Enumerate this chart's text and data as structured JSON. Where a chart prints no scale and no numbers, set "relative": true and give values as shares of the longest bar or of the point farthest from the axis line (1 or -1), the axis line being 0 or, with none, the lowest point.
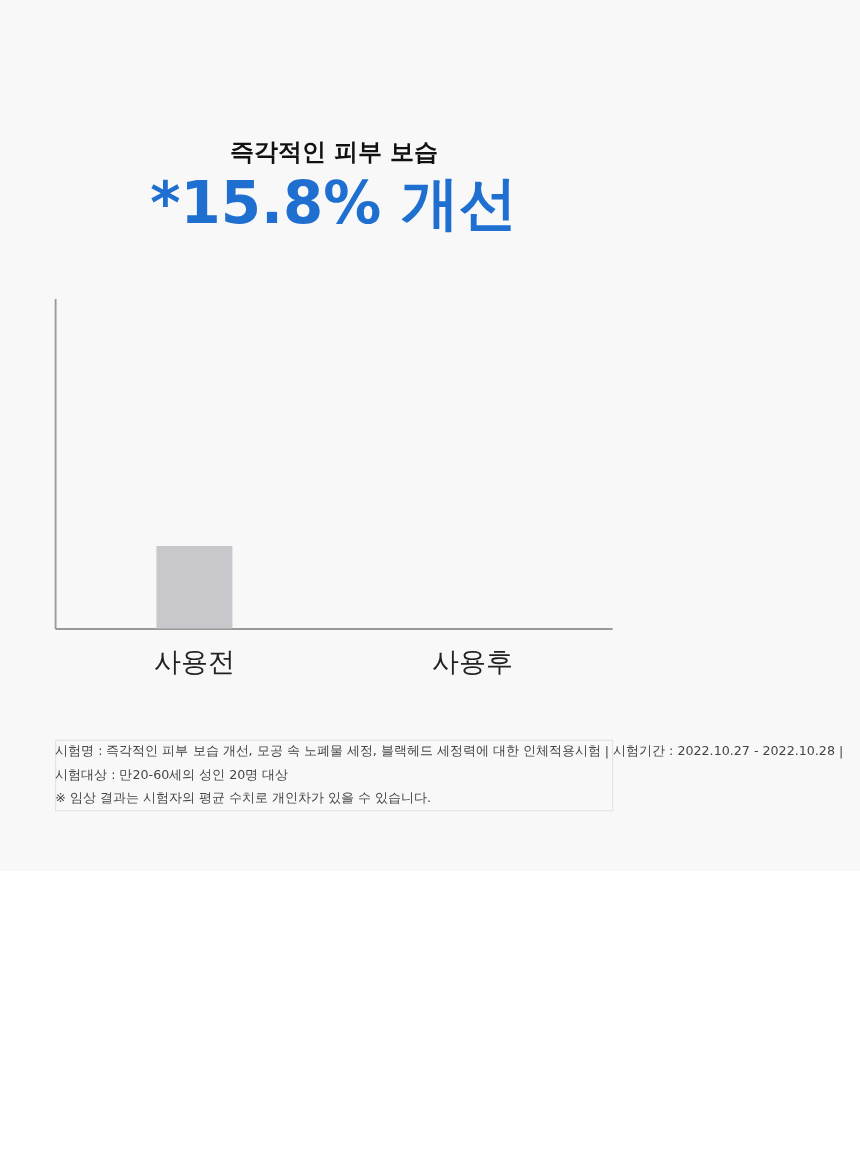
{
  "chart_data": {
    "type": "bar",
    "title": "즉각적인 피부 보습",
    "subtitle": "*15.8% 개선",
    "categories": [
      "사용전",
      "사용후"
    ],
    "values": [
      1,
      null
    ],
    "colors": [
      "#c8c8cc",
      "#1f6fd1"
    ],
    "relative": true,
    "annotations": [
      "시험명 : 즉각적인 피부 보습 개선, 모공 속 노폐물 세정, 블랙헤드 세정력에 대한 인체적용시험  |  시험기간 : 2022.10.27 - 2022.10.28  |",
      "시험대상 : 만20-60세의 성인 20명 대상",
      "※ 임상 결과는 시험자의 평균 수치로 개인차가 있을 수 있습니다."
    ]
  }
}
